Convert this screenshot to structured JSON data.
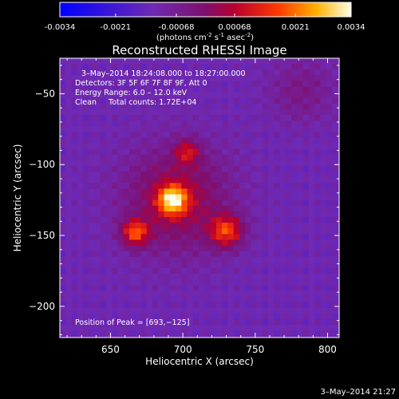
{
  "chart_data": {
    "type": "heatmap",
    "title": "Reconstructed RHESSI Image",
    "colorbar": {
      "tick_labels": [
        "-0.0034",
        "-0.0021",
        "-0.00068",
        "0.00068",
        "0.0021",
        "0.0034"
      ],
      "tick_values": [
        -0.0034,
        -0.0021,
        -0.00068,
        0.00068,
        0.0021,
        0.0034
      ],
      "range": [
        -0.0034,
        0.0034
      ],
      "label_main": "(photons cm",
      "label_exp1": "-2",
      "label_mid": " s",
      "label_exp2": "-1",
      "label_after": " asec",
      "label_exp3": "-2",
      "label_close": ")"
    },
    "xlabel": "Heliocentric X (arcsec)",
    "ylabel": "Heliocentric Y (arcsec)",
    "xlim": [
      615,
      808
    ],
    "ylim": [
      -222,
      -25
    ],
    "x_ticks": [
      650,
      700,
      750,
      800
    ],
    "x_tick_labels": [
      "650",
      "700",
      "750",
      "800"
    ],
    "y_ticks": [
      -50,
      -100,
      -150,
      -200
    ],
    "y_tick_labels": [
      "−50",
      "−100",
      "−150",
      "−200"
    ],
    "annotations": [
      "3–May–2014 18:24:08.000 to 18:27:00.000",
      "Detectors: 3F 5F 6F 7F 8F 9F, Att 0",
      "Energy Range: 6.0 – 12.0 keV",
      "Clean     Total counts: 1.72E+04"
    ],
    "peak_label": "Position of Peak = [693,−125]",
    "peak": {
      "x": 693,
      "y": -125
    },
    "sources": [
      {
        "x": 693,
        "y": -125,
        "sigma": 7,
        "amp": 0.0034
      },
      {
        "x": 667,
        "y": -148,
        "sigma": 6.5,
        "amp": 0.0026
      },
      {
        "x": 730,
        "y": -147,
        "sigma": 8,
        "amp": 0.0025
      },
      {
        "x": 703,
        "y": -91,
        "sigma": 6,
        "amp": 0.0017
      },
      {
        "x": 696,
        "y": -125,
        "sigma": 26,
        "amp": 0.0017
      },
      {
        "x": 782,
        "y": -48,
        "sigma": 16,
        "amp": 0.0008
      }
    ],
    "background": -0.0012,
    "grid": false
  },
  "footer": {
    "timestamp": "3–May–2014 21:27"
  }
}
